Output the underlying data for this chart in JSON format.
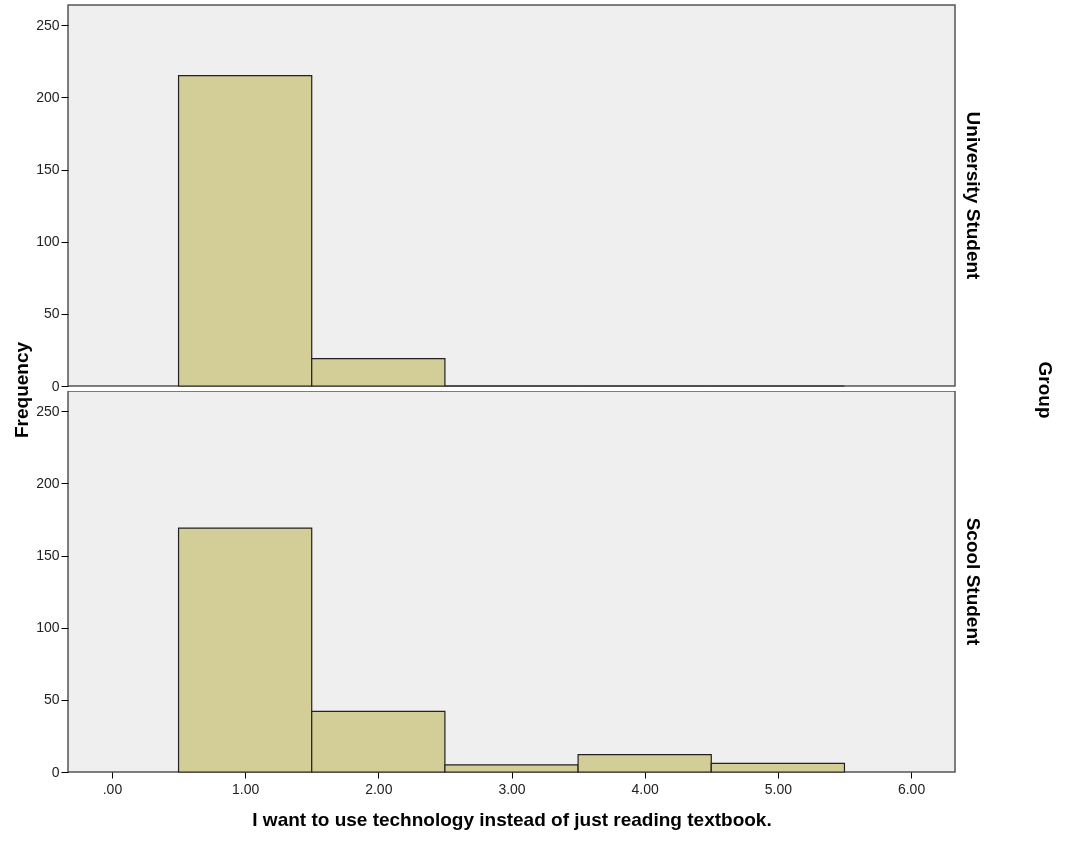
{
  "chart_data": [
    {
      "type": "histogram",
      "title": "University Student",
      "ylabel": "Frequency",
      "annotations": [
        "Group"
      ],
      "color": "#d3cd97",
      "bins": [
        0.5,
        1.5,
        2.5,
        3.5,
        4.5,
        5.5
      ],
      "values": [
        215,
        19,
        0,
        0,
        0
      ],
      "xlim": [
        -0.33,
        6.33
      ],
      "ylim": [
        0,
        264
      ],
      "yticks": [
        0,
        50,
        100,
        150,
        200,
        250
      ],
      "tick_labels": "y"
    },
    {
      "type": "histogram",
      "title": "Scool Student",
      "xlabel": "I want to use technology instead of just reading textbook.",
      "color": "#d3cd97",
      "bins": [
        0.5,
        1.5,
        2.5,
        3.5,
        4.5,
        5.5
      ],
      "values": [
        169,
        42,
        5,
        12,
        6
      ],
      "xlim": [
        -0.33,
        6.33
      ],
      "xticks": [
        {
          "value": 0,
          "label": ".00"
        },
        {
          "value": 1,
          "label": "1.00"
        },
        {
          "value": 2,
          "label": "2.00"
        },
        {
          "value": 3,
          "label": "3.00"
        },
        {
          "value": 4,
          "label": "4.00"
        },
        {
          "value": 5,
          "label": "5.00"
        },
        {
          "value": 6,
          "label": "6.00"
        }
      ],
      "ylim": [
        0,
        264
      ],
      "yticks": [
        0,
        50,
        100,
        150,
        200,
        250
      ]
    }
  ]
}
